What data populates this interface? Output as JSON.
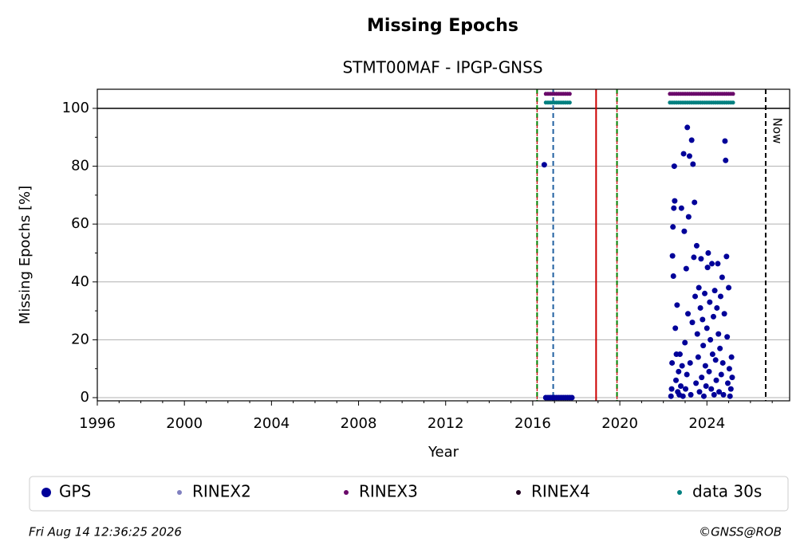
{
  "chart_data": {
    "type": "scatter",
    "title": "Missing Epochs",
    "subtitle": "STMT00MAF - IPGP-GNSS",
    "xlabel": "Year",
    "ylabel": "Missing Epochs [%]",
    "xlim": [
      1996,
      2027.8
    ],
    "ylim": [
      -1.1,
      106.6
    ],
    "xticks": [
      1996,
      2000,
      2004,
      2008,
      2012,
      2016,
      2020,
      2024
    ],
    "xminorticks": [
      1997,
      1998,
      1999,
      2001,
      2002,
      2003,
      2005,
      2006,
      2007,
      2009,
      2010,
      2011,
      2013,
      2014,
      2015,
      2017,
      2018,
      2019,
      2021,
      2022,
      2023,
      2025,
      2026,
      2027
    ],
    "yticks": [
      0,
      20,
      40,
      60,
      80,
      100
    ],
    "yminorticks": [
      10,
      30,
      50,
      70,
      90
    ],
    "grid": true,
    "hlines": [
      {
        "y": 100,
        "color": "#000000"
      }
    ],
    "vlines": [
      {
        "x": 2016.2,
        "color": "#008000",
        "color2": "#cc0000",
        "style": "dashed"
      },
      {
        "x": 2016.94,
        "color": "#1f5fa0",
        "style": "dashed"
      },
      {
        "x": 2018.91,
        "color": "#cc0000",
        "style": "solid"
      },
      {
        "x": 2019.87,
        "color": "#008000",
        "color2": "#cc0000",
        "style": "dashed"
      },
      {
        "x": 2026.7,
        "color": "#000000",
        "style": "dashed",
        "label": "Now"
      }
    ],
    "legend": "bottom",
    "series": [
      {
        "name": "GPS",
        "color": "#000099",
        "size": 3.5,
        "x": [
          2016.53,
          2016.6,
          2016.7,
          2016.8,
          2016.9,
          2017.0,
          2017.1,
          2017.2,
          2017.3,
          2017.4,
          2017.5,
          2017.6,
          2017.7,
          2017.8,
          2022.35,
          2022.38,
          2022.4,
          2022.42,
          2022.44,
          2022.46,
          2022.48,
          2022.5,
          2022.52,
          2022.55,
          2022.58,
          2022.6,
          2022.63,
          2022.66,
          2022.7,
          2022.73,
          2022.76,
          2022.8,
          2022.83,
          2022.86,
          2022.9,
          2022.93,
          2022.96,
          2022.99,
          2023.02,
          2023.05,
          2023.08,
          2023.1,
          2023.13,
          2023.16,
          2023.2,
          2023.23,
          2023.26,
          2023.3,
          2023.33,
          2023.36,
          2023.4,
          2023.43,
          2023.46,
          2023.5,
          2023.53,
          2023.56,
          2023.6,
          2023.63,
          2023.66,
          2023.7,
          2023.73,
          2023.76,
          2023.8,
          2023.83,
          2023.86,
          2023.9,
          2023.93,
          2023.96,
          2024.0,
          2024.03,
          2024.06,
          2024.1,
          2024.13,
          2024.16,
          2024.2,
          2024.23,
          2024.26,
          2024.3,
          2024.33,
          2024.36,
          2024.4,
          2024.43,
          2024.46,
          2024.5,
          2024.53,
          2024.56,
          2024.6,
          2024.63,
          2024.66,
          2024.7,
          2024.73,
          2024.76,
          2024.8,
          2024.83,
          2024.86,
          2024.9,
          2024.93,
          2024.96,
          2025.0,
          2025.03,
          2025.06,
          2025.1,
          2025.13,
          2025.16
        ],
        "values": [
          80.5,
          0,
          0,
          0,
          0,
          0,
          0,
          0,
          0,
          0,
          0,
          0,
          0,
          0,
          0.5,
          3,
          12,
          49,
          59,
          42,
          65.5,
          80,
          68,
          24,
          6,
          15,
          32,
          2,
          9,
          1,
          15,
          4,
          65.5,
          11,
          0.5,
          84.3,
          57.5,
          19,
          3,
          44.6,
          8,
          93.4,
          29,
          62.5,
          83.5,
          12,
          1,
          89,
          26,
          80.7,
          48.5,
          67.5,
          35,
          5,
          52.5,
          22,
          14,
          38,
          2,
          31,
          48,
          7,
          27,
          18,
          0.5,
          36,
          11,
          4,
          24,
          45,
          50,
          9,
          33,
          20,
          3,
          46.3,
          15,
          28,
          1,
          37,
          13,
          6,
          31,
          46.3,
          22,
          2,
          17,
          35,
          8,
          41.6,
          12,
          1,
          29,
          88.7,
          82,
          48.8,
          21,
          5,
          38,
          10,
          0.5,
          3,
          14,
          7
        ]
      },
      {
        "name": "RINEX2",
        "color": "#8080c0",
        "size": 2.5,
        "x": [],
        "values": []
      },
      {
        "name": "RINEX3",
        "color": "#6a0a6a",
        "size": 2.5,
        "x": [
          2016.6,
          2016.7,
          2016.8,
          2016.9,
          2017.0,
          2017.1,
          2017.2,
          2017.3,
          2017.4,
          2017.5,
          2017.6,
          2017.7,
          2022.3,
          2022.4,
          2022.5,
          2022.6,
          2022.7,
          2022.8,
          2022.9,
          2023.0,
          2023.1,
          2023.2,
          2023.3,
          2023.4,
          2023.5,
          2023.6,
          2023.7,
          2023.8,
          2023.9,
          2024.0,
          2024.1,
          2024.2,
          2024.3,
          2024.4,
          2024.5,
          2024.6,
          2024.7,
          2024.8,
          2024.9,
          2025.0,
          2025.1,
          2025.2
        ],
        "values": [
          105,
          105,
          105,
          105,
          105,
          105,
          105,
          105,
          105,
          105,
          105,
          105,
          105,
          105,
          105,
          105,
          105,
          105,
          105,
          105,
          105,
          105,
          105,
          105,
          105,
          105,
          105,
          105,
          105,
          105,
          105,
          105,
          105,
          105,
          105,
          105,
          105,
          105,
          105,
          105,
          105,
          105
        ]
      },
      {
        "name": "RINEX4",
        "color": "#200020",
        "size": 2.5,
        "x": [],
        "values": []
      },
      {
        "name": "data 30s",
        "color": "#008080",
        "size": 2.5,
        "x": [
          2016.6,
          2016.7,
          2016.8,
          2016.9,
          2017.0,
          2017.1,
          2017.2,
          2017.3,
          2017.4,
          2017.5,
          2017.6,
          2017.7,
          2022.3,
          2022.4,
          2022.5,
          2022.6,
          2022.7,
          2022.8,
          2022.9,
          2023.0,
          2023.1,
          2023.2,
          2023.3,
          2023.4,
          2023.5,
          2023.6,
          2023.7,
          2023.8,
          2023.9,
          2024.0,
          2024.1,
          2024.2,
          2024.3,
          2024.4,
          2024.5,
          2024.6,
          2024.7,
          2024.8,
          2024.9,
          2025.0,
          2025.1,
          2025.2
        ],
        "values": [
          102,
          102,
          102,
          102,
          102,
          102,
          102,
          102,
          102,
          102,
          102,
          102,
          102,
          102,
          102,
          102,
          102,
          102,
          102,
          102,
          102,
          102,
          102,
          102,
          102,
          102,
          102,
          102,
          102,
          102,
          102,
          102,
          102,
          102,
          102,
          102,
          102,
          102,
          102,
          102,
          102,
          102
        ]
      }
    ],
    "footer_left": "Fri Aug 14 12:36:25 2026",
    "footer_right": "©GNSS@ROB"
  }
}
